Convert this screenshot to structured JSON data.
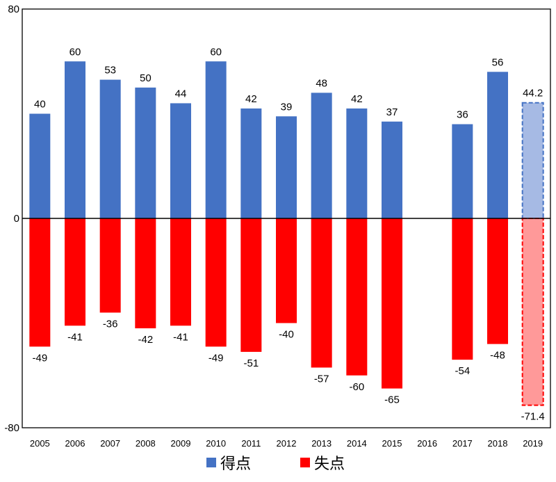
{
  "chart_data": {
    "type": "bar",
    "categories": [
      "2005",
      "2006",
      "2007",
      "2008",
      "2009",
      "2010",
      "2011",
      "2012",
      "2013",
      "2014",
      "2015",
      "2016",
      "2017",
      "2018",
      "2019"
    ],
    "series": [
      {
        "name": "得点",
        "color": "#4472C4",
        "projected_color": "#A6BAE4",
        "values": [
          40,
          60,
          53,
          50,
          44,
          60,
          42,
          39,
          48,
          42,
          37,
          null,
          36,
          56,
          44.2
        ],
        "labels": [
          "40",
          "60",
          "53",
          "50",
          "44",
          "60",
          "42",
          "39",
          "48",
          "42",
          "37",
          "",
          "36",
          "56",
          "44.2"
        ]
      },
      {
        "name": "失点",
        "color": "#FF0000",
        "projected_color": "#FF9999",
        "values": [
          -49,
          -41,
          -36,
          -42,
          -41,
          -49,
          -51,
          -40,
          -57,
          -60,
          -65,
          null,
          -54,
          -48,
          -71.4
        ],
        "labels": [
          "-49",
          "-41",
          "-36",
          "-42",
          "-41",
          "-49",
          "-51",
          "-40",
          "-57",
          "-60",
          "-65",
          "",
          "-54",
          "-48",
          "-71.4"
        ]
      }
    ],
    "projected_category": "2019",
    "ylim": [
      -80,
      80
    ],
    "y_ticks": [
      80,
      0,
      -80
    ],
    "y_tick_labels": [
      "80",
      "0",
      "-80"
    ],
    "title": "",
    "xlabel": "",
    "ylabel": "",
    "legend_position": "bottom"
  }
}
